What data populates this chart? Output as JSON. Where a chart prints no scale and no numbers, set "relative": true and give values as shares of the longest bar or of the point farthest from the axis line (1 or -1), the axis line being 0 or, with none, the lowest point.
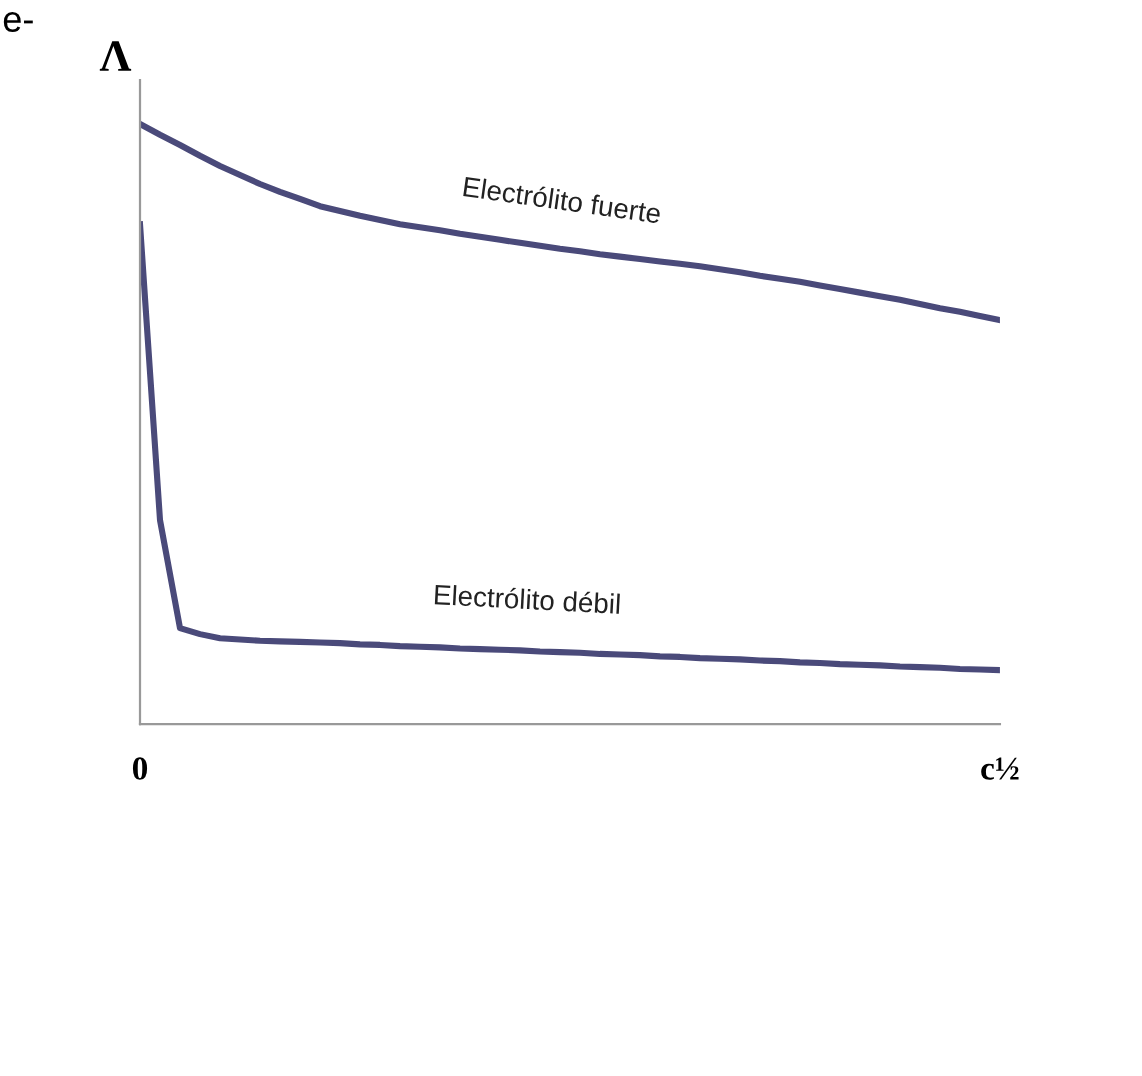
{
  "chart_data": {
    "type": "line",
    "relative": true,
    "ylabel": "Λ",
    "xlabel": "c½",
    "marker": "none",
    "line_style": "solid",
    "categories": [
      null,
      null,
      null,
      null,
      null,
      null,
      null,
      null,
      null,
      null,
      null,
      null,
      null,
      null,
      null,
      null,
      null,
      null,
      null,
      null,
      null,
      null,
      null,
      null,
      null,
      null,
      null,
      null,
      null,
      null,
      null,
      null,
      null,
      null,
      null,
      null,
      null,
      null,
      null,
      null,
      null,
      null,
      null,
      null
    ],
    "series": [
      {
        "color": "#4a4a7a",
        "values": [
          1.0,
          0.982,
          0.965,
          0.947,
          0.93,
          0.915,
          0.9,
          0.887,
          0.875,
          0.863,
          0.855,
          0.847,
          0.84,
          0.833,
          0.828,
          0.823,
          0.817,
          0.812,
          0.807,
          0.802,
          0.797,
          0.792,
          0.788,
          0.783,
          0.779,
          0.775,
          0.771,
          0.767,
          0.763,
          0.758,
          0.753,
          0.747,
          0.742,
          0.737,
          0.731,
          0.725,
          0.719,
          0.713,
          0.707,
          0.7,
          0.693,
          0.687,
          0.68,
          0.673
        ]
      },
      {
        "color": "#4a4a7a",
        "values": [
          0.833,
          0.34,
          0.16,
          0.15,
          0.143,
          0.141,
          0.139,
          0.138,
          0.137,
          0.136,
          0.135,
          0.133,
          0.132,
          0.13,
          0.129,
          0.128,
          0.126,
          0.125,
          0.124,
          0.123,
          0.121,
          0.12,
          0.119,
          0.117,
          0.116,
          0.115,
          0.113,
          0.112,
          0.11,
          0.109,
          0.108,
          0.106,
          0.105,
          0.103,
          0.102,
          0.1,
          0.099,
          0.098,
          0.096,
          0.095,
          0.094,
          0.092,
          0.091,
          0.09
        ]
      }
    ],
    "annotations": [
      "Electrólito fuerte",
      "Electrólito débil",
      "e-",
      "0"
    ]
  }
}
